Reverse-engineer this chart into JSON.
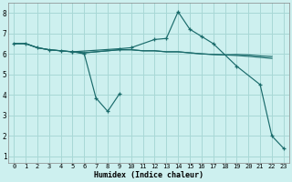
{
  "bg_color": "#cdf0ef",
  "grid_color": "#a8d8d6",
  "line_color": "#1a6b6b",
  "xlabel": "Humidex (Indice chaleur)",
  "xlim": [
    -0.5,
    23.5
  ],
  "ylim": [
    0.7,
    8.5
  ],
  "yticks": [
    1,
    2,
    3,
    4,
    5,
    6,
    7,
    8
  ],
  "xticks": [
    0,
    1,
    2,
    3,
    4,
    5,
    6,
    7,
    8,
    9,
    10,
    11,
    12,
    13,
    14,
    15,
    16,
    17,
    18,
    19,
    20,
    21,
    22,
    23
  ],
  "curve_main_x": [
    0,
    1,
    2,
    3,
    4,
    5,
    9,
    10,
    12,
    13,
    14,
    15,
    16,
    17,
    19,
    21,
    22,
    23
  ],
  "curve_main_y": [
    6.5,
    6.5,
    6.3,
    6.2,
    6.15,
    6.1,
    6.25,
    6.3,
    6.7,
    6.75,
    8.05,
    7.2,
    6.85,
    6.5,
    5.4,
    4.5,
    2.0,
    1.4
  ],
  "curve_dip_x": [
    5,
    6,
    7,
    8,
    9
  ],
  "curve_dip_y": [
    6.1,
    6.0,
    3.85,
    3.2,
    4.05
  ],
  "curve_flat1_x": [
    0,
    1,
    2,
    3,
    4,
    5,
    6,
    9,
    10,
    11,
    12,
    13,
    14,
    15,
    16,
    17,
    18,
    19,
    20,
    21,
    22
  ],
  "curve_flat1_y": [
    6.5,
    6.5,
    6.3,
    6.2,
    6.15,
    6.1,
    6.05,
    6.2,
    6.2,
    6.15,
    6.15,
    6.1,
    6.1,
    6.05,
    6.0,
    5.97,
    5.95,
    5.92,
    5.88,
    5.83,
    5.78
  ],
  "curve_flat2_x": [
    0,
    1,
    2,
    3,
    4,
    5,
    6,
    9,
    10,
    11,
    12,
    13,
    14,
    15,
    16,
    17,
    18,
    19,
    20,
    21,
    22
  ],
  "curve_flat2_y": [
    6.5,
    6.5,
    6.3,
    6.2,
    6.15,
    6.1,
    6.05,
    6.2,
    6.2,
    6.15,
    6.15,
    6.1,
    6.1,
    6.05,
    6.0,
    5.97,
    5.95,
    5.97,
    5.95,
    5.9,
    5.87
  ],
  "lw": 0.85,
  "ms": 3.0
}
